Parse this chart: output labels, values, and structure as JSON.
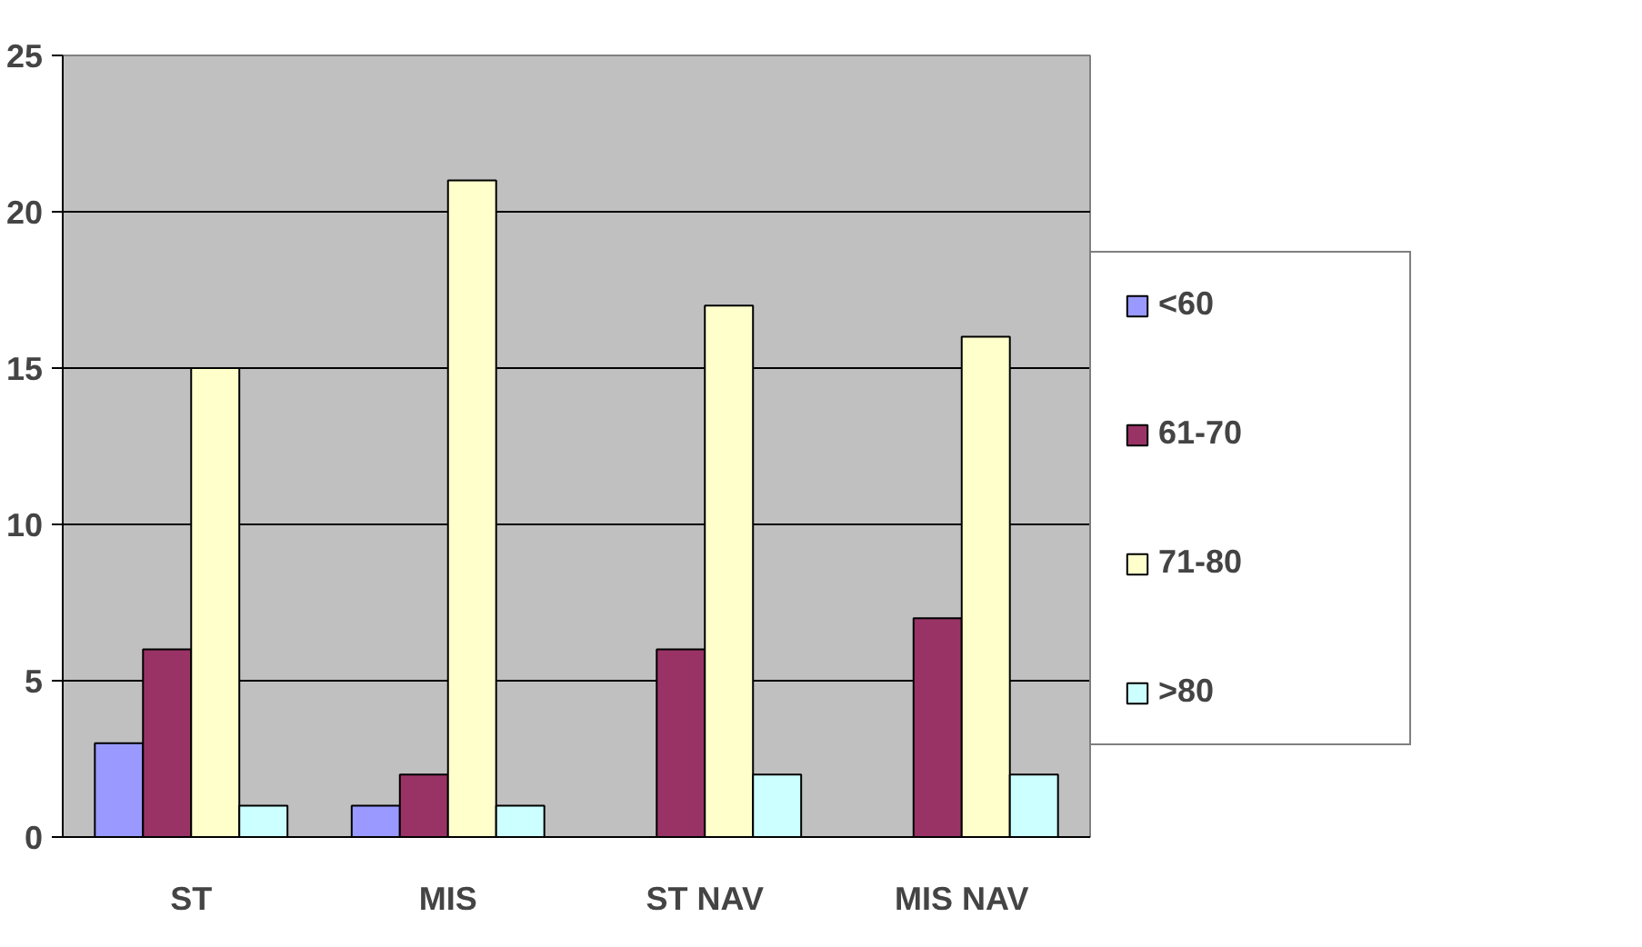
{
  "chart_data": {
    "type": "bar",
    "categories": [
      "ST",
      "MIS",
      "ST NAV",
      "MIS NAV"
    ],
    "series": [
      {
        "name": "<60",
        "color": "#9999ff",
        "values": [
          3,
          1,
          null,
          null
        ]
      },
      {
        "name": "61-70",
        "color": "#993366",
        "values": [
          6,
          2,
          6,
          7
        ]
      },
      {
        "name": "71-80",
        "color": "#ffffcc",
        "values": [
          15,
          21,
          17,
          16
        ]
      },
      {
        "name": ">80",
        "color": "#ccffff",
        "values": [
          1,
          1,
          2,
          2
        ]
      }
    ],
    "ylim": [
      0,
      25
    ],
    "yticks": [
      0,
      5,
      10,
      15,
      20,
      25
    ],
    "grid": "y",
    "legend": "right"
  }
}
